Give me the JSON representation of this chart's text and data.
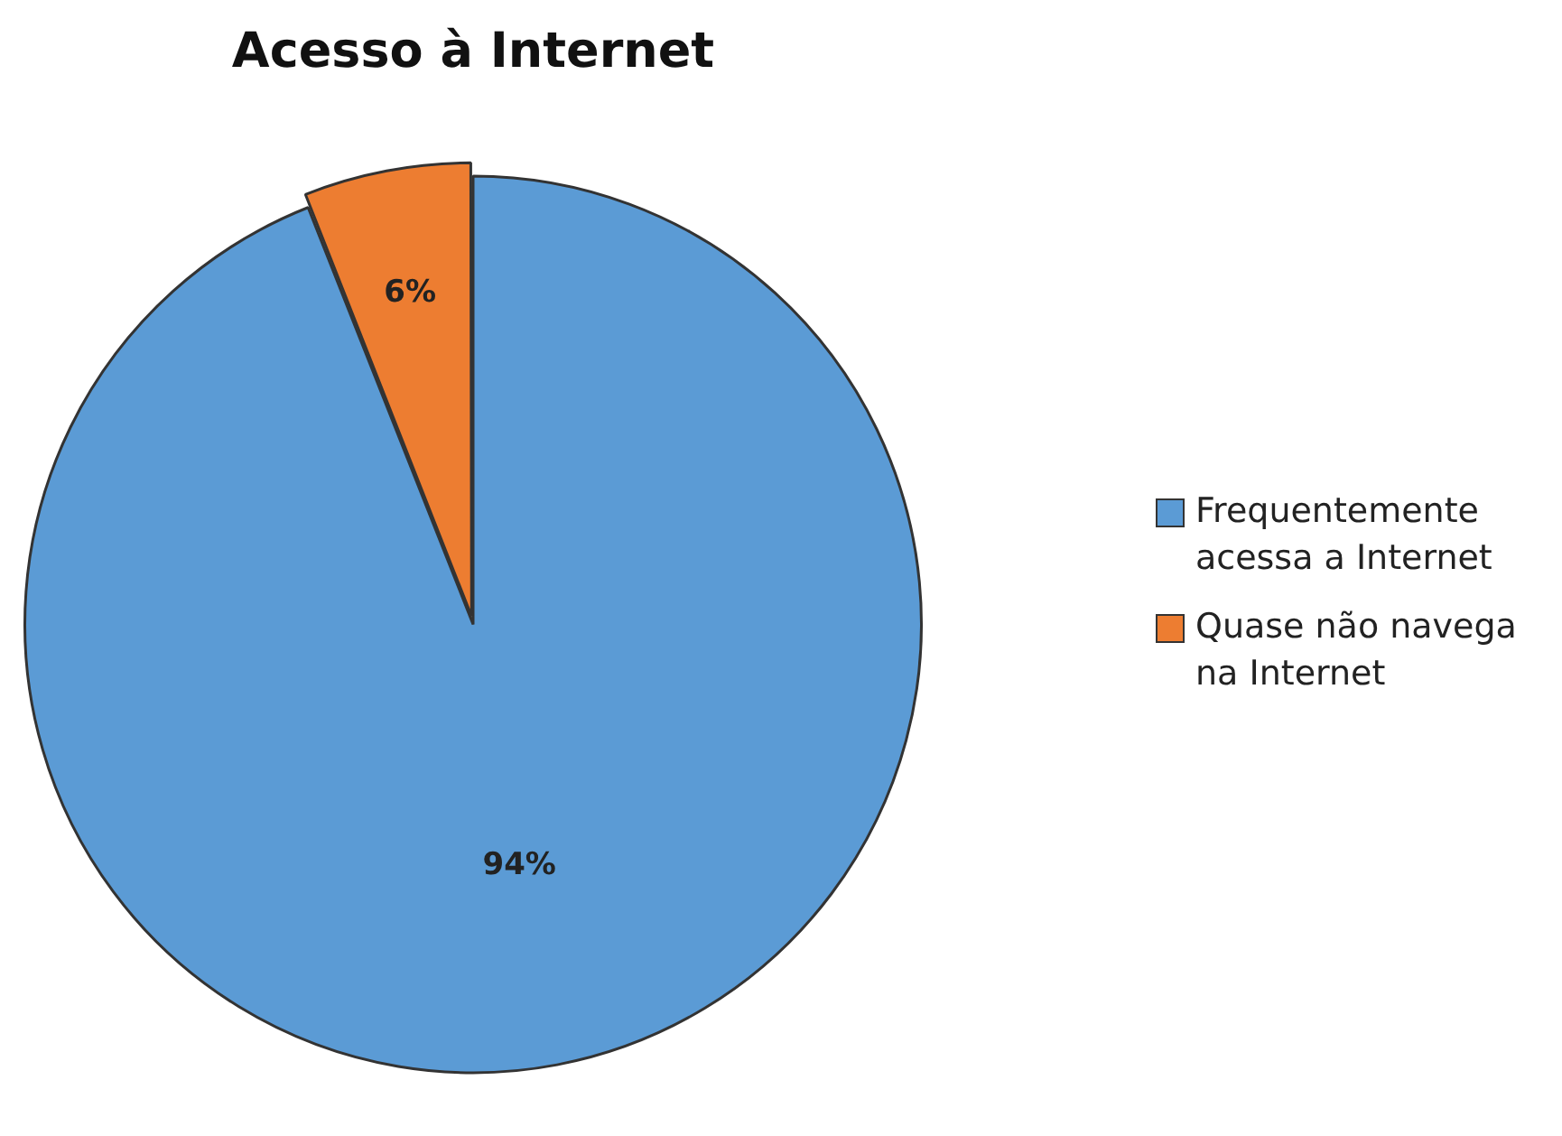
{
  "chart_data": {
    "type": "pie",
    "title": "Acesso à Internet",
    "categories": [
      "Frequentemente acessa a Internet",
      "Quase não navega na Internet"
    ],
    "values": [
      94,
      6
    ],
    "colors": [
      "#5b9bd5",
      "#ed7d31"
    ],
    "value_labels": [
      "94%",
      "6%"
    ],
    "legend": "right"
  }
}
